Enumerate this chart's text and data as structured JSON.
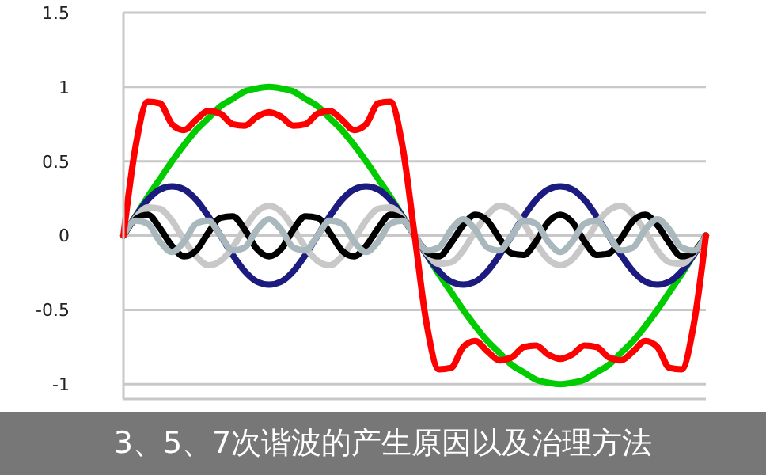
{
  "chart_data": {
    "type": "line",
    "title": "3、5、7次谐波的产生原因以及治理方法",
    "categories": [
      null,
      null,
      null,
      null,
      null,
      null,
      null,
      null,
      null,
      null,
      null,
      null,
      null,
      null,
      null,
      null,
      null,
      null,
      null,
      null,
      null,
      null,
      null,
      null,
      null,
      null,
      null,
      null,
      null,
      null,
      null,
      null,
      null,
      null,
      null,
      null,
      null,
      null,
      null,
      null,
      null,
      null,
      null,
      null,
      null,
      null,
      null,
      null,
      null
    ],
    "series": [
      {
        "color": "#00cc00",
        "values": [
          0,
          0.13,
          0.26,
          0.38,
          0.5,
          0.61,
          0.71,
          0.79,
          0.87,
          0.92,
          0.97,
          0.99,
          1,
          0.99,
          0.97,
          0.92,
          0.87,
          0.79,
          0.71,
          0.61,
          0.5,
          0.38,
          0.26,
          0.13,
          0,
          -0.13,
          -0.26,
          -0.38,
          -0.5,
          -0.61,
          -0.71,
          -0.79,
          -0.87,
          -0.92,
          -0.97,
          -0.99,
          -1,
          -0.99,
          -0.97,
          -0.92,
          -0.87,
          -0.79,
          -0.71,
          -0.61,
          -0.5,
          -0.38,
          -0.26,
          -0.13,
          0
        ]
      },
      {
        "color": "#1c1c80",
        "values": [
          0,
          0.13,
          0.24,
          0.31,
          0.33,
          0.31,
          0.24,
          0.13,
          0,
          -0.13,
          -0.24,
          -0.31,
          -0.33,
          -0.31,
          -0.24,
          -0.13,
          0,
          0.13,
          0.24,
          0.31,
          0.33,
          0.31,
          0.24,
          0.13,
          0,
          -0.13,
          -0.24,
          -0.31,
          -0.33,
          -0.31,
          -0.24,
          -0.13,
          0,
          0.13,
          0.24,
          0.31,
          0.33,
          0.31,
          0.24,
          0.13,
          0,
          -0.13,
          -0.24,
          -0.31,
          -0.33,
          -0.31,
          -0.24,
          -0.13,
          0
        ]
      },
      {
        "color": "#c8c8c8",
        "values": [
          0,
          0.12,
          0.19,
          0.18,
          0.1,
          -0.03,
          -0.14,
          -0.2,
          -0.17,
          -0.08,
          0.05,
          0.16,
          0.2,
          0.16,
          0.05,
          -0.08,
          -0.17,
          -0.2,
          -0.14,
          -0.03,
          0.1,
          0.18,
          0.19,
          0.12,
          0,
          -0.12,
          -0.19,
          -0.18,
          -0.1,
          0.03,
          0.14,
          0.2,
          0.17,
          0.08,
          -0.05,
          -0.16,
          -0.2,
          -0.16,
          -0.05,
          0.08,
          0.17,
          0.2,
          0.14,
          0.03,
          -0.1,
          -0.18,
          -0.19,
          -0.12,
          0
        ]
      },
      {
        "color": "#000000",
        "values": [
          0,
          0.11,
          0.14,
          0.05,
          -0.07,
          -0.14,
          -0.1,
          0.02,
          0.12,
          0.13,
          0.04,
          -0.09,
          -0.14,
          -0.09,
          0.04,
          0.13,
          0.12,
          0.02,
          -0.1,
          -0.14,
          -0.07,
          0.05,
          0.14,
          0.11,
          0,
          -0.11,
          -0.14,
          -0.05,
          0.07,
          0.14,
          0.1,
          -0.02,
          -0.12,
          -0.13,
          -0.04,
          0.09,
          0.14,
          0.09,
          -0.04,
          -0.13,
          -0.12,
          -0.02,
          0.1,
          0.14,
          0.07,
          -0.05,
          -0.14,
          -0.11,
          0
        ]
      },
      {
        "color": "#a8b8bc",
        "values": [
          0,
          0.1,
          0.08,
          -0.04,
          -0.11,
          -0.04,
          0.08,
          0.1,
          0,
          -0.1,
          -0.08,
          0.04,
          0.11,
          0.04,
          -0.08,
          -0.1,
          0,
          0.1,
          0.08,
          -0.04,
          -0.11,
          -0.04,
          0.08,
          0.1,
          0,
          -0.1,
          -0.08,
          0.04,
          0.11,
          0.04,
          -0.08,
          -0.1,
          0,
          0.1,
          0.08,
          -0.04,
          -0.11,
          -0.04,
          0.08,
          0.1,
          0,
          -0.1,
          -0.08,
          0.04,
          0.11,
          0.04,
          -0.08,
          -0.1,
          0
        ]
      },
      {
        "color": "#ff0000",
        "values": [
          0,
          0.6,
          0.9,
          0.89,
          0.75,
          0.71,
          0.78,
          0.84,
          0.82,
          0.75,
          0.74,
          0.8,
          0.83,
          0.8,
          0.74,
          0.75,
          0.82,
          0.84,
          0.78,
          0.71,
          0.75,
          0.89,
          0.9,
          0.6,
          0,
          -0.6,
          -0.9,
          -0.89,
          -0.75,
          -0.71,
          -0.78,
          -0.84,
          -0.82,
          -0.75,
          -0.74,
          -0.8,
          -0.83,
          -0.8,
          -0.74,
          -0.75,
          -0.82,
          -0.84,
          -0.78,
          -0.71,
          -0.75,
          -0.89,
          -0.9,
          -0.6,
          0
        ]
      }
    ],
    "ylim": [
      -1.1,
      1.5
    ],
    "yticks": [
      -1,
      -0.5,
      0,
      0.5,
      1,
      1.5
    ],
    "grid": "y",
    "marker": "none",
    "line_style": "solid",
    "tick_labels": "y"
  }
}
